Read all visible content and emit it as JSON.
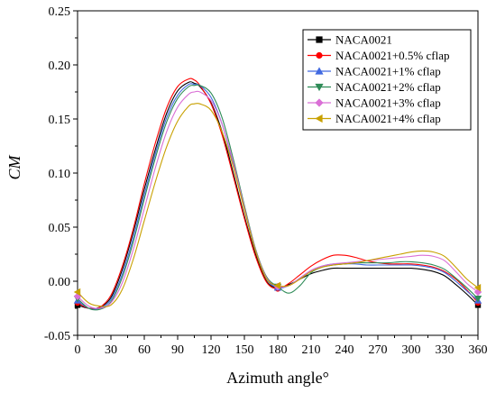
{
  "chart_data": {
    "type": "line",
    "xlabel": "Azimuth angle°",
    "ylabel": "CM",
    "xlim": [
      0,
      360
    ],
    "ylim": [
      -0.05,
      0.25
    ],
    "xticks": [
      "0",
      "30",
      "60",
      "90",
      "120",
      "150",
      "180",
      "210",
      "240",
      "270",
      "300",
      "330",
      "360"
    ],
    "yticks": [
      "-0.05",
      "0.00",
      "0.05",
      "0.10",
      "0.15",
      "0.20",
      "0.25"
    ],
    "grid": false,
    "legend_position": "top-right",
    "x": [
      0,
      10,
      20,
      30,
      40,
      50,
      60,
      70,
      80,
      90,
      100,
      105,
      110,
      120,
      130,
      140,
      150,
      160,
      170,
      180,
      190,
      200,
      210,
      220,
      230,
      240,
      250,
      260,
      270,
      280,
      290,
      300,
      310,
      320,
      330,
      340,
      350,
      360
    ],
    "series": [
      {
        "name": "NACA0021",
        "color": "#000000",
        "marker": "square",
        "values": [
          -0.022,
          -0.025,
          -0.024,
          -0.015,
          0.01,
          0.045,
          0.085,
          0.122,
          0.155,
          0.176,
          0.184,
          0.183,
          0.18,
          0.165,
          0.138,
          0.1,
          0.06,
          0.025,
          0.0,
          -0.006,
          -0.003,
          0.002,
          0.007,
          0.01,
          0.012,
          0.012,
          0.012,
          0.012,
          0.012,
          0.012,
          0.012,
          0.012,
          0.011,
          0.009,
          0.005,
          -0.003,
          -0.012,
          -0.022
        ]
      },
      {
        "name": "NACA0021+0.5% cflap",
        "color": "#ff0000",
        "marker": "circle",
        "values": [
          -0.02,
          -0.025,
          -0.024,
          -0.013,
          0.013,
          0.048,
          0.09,
          0.128,
          0.16,
          0.18,
          0.187,
          0.186,
          0.181,
          0.164,
          0.135,
          0.097,
          0.058,
          0.023,
          -0.001,
          -0.007,
          -0.002,
          0.006,
          0.014,
          0.02,
          0.024,
          0.024,
          0.022,
          0.019,
          0.017,
          0.016,
          0.016,
          0.016,
          0.015,
          0.013,
          0.009,
          0.002,
          -0.008,
          -0.02
        ]
      },
      {
        "name": "NACA0021+1% cflap",
        "color": "#4169e1",
        "marker": "triangle-up",
        "values": [
          -0.018,
          -0.025,
          -0.025,
          -0.017,
          0.006,
          0.04,
          0.08,
          0.118,
          0.151,
          0.172,
          0.182,
          0.182,
          0.181,
          0.17,
          0.145,
          0.108,
          0.066,
          0.028,
          0.002,
          -0.006,
          -0.004,
          0.003,
          0.01,
          0.014,
          0.016,
          0.016,
          0.016,
          0.015,
          0.015,
          0.015,
          0.015,
          0.015,
          0.014,
          0.012,
          0.008,
          0.0,
          -0.009,
          -0.018
        ]
      },
      {
        "name": "NACA0021+2% cflap",
        "color": "#2e8b57",
        "marker": "triangle-down",
        "values": [
          -0.016,
          -0.025,
          -0.026,
          -0.019,
          0.003,
          0.036,
          0.076,
          0.114,
          0.147,
          0.169,
          0.18,
          0.181,
          0.181,
          0.174,
          0.151,
          0.113,
          0.07,
          0.03,
          0.004,
          -0.005,
          -0.011,
          -0.004,
          0.008,
          0.013,
          0.015,
          0.016,
          0.017,
          0.017,
          0.017,
          0.017,
          0.018,
          0.018,
          0.017,
          0.015,
          0.011,
          0.003,
          -0.006,
          -0.016
        ]
      },
      {
        "name": "NACA0021+3% cflap",
        "color": "#da70d6",
        "marker": "diamond",
        "values": [
          -0.014,
          -0.023,
          -0.025,
          -0.02,
          -0.002,
          0.029,
          0.067,
          0.105,
          0.138,
          0.161,
          0.173,
          0.175,
          0.175,
          0.167,
          0.145,
          0.11,
          0.068,
          0.029,
          0.003,
          -0.005,
          -0.004,
          0.003,
          0.01,
          0.014,
          0.016,
          0.017,
          0.018,
          0.019,
          0.02,
          0.021,
          0.022,
          0.023,
          0.024,
          0.023,
          0.019,
          0.009,
          -0.002,
          -0.01
        ]
      },
      {
        "name": "NACA0021+4% cflap",
        "color": "#c8a000",
        "marker": "triangle-left",
        "values": [
          -0.01,
          -0.02,
          -0.023,
          -0.022,
          -0.008,
          0.02,
          0.056,
          0.092,
          0.124,
          0.148,
          0.162,
          0.164,
          0.164,
          0.158,
          0.138,
          0.106,
          0.066,
          0.028,
          0.002,
          -0.004,
          -0.004,
          0.002,
          0.009,
          0.013,
          0.015,
          0.016,
          0.017,
          0.019,
          0.021,
          0.023,
          0.025,
          0.027,
          0.028,
          0.027,
          0.023,
          0.013,
          0.002,
          -0.006
        ]
      }
    ]
  }
}
